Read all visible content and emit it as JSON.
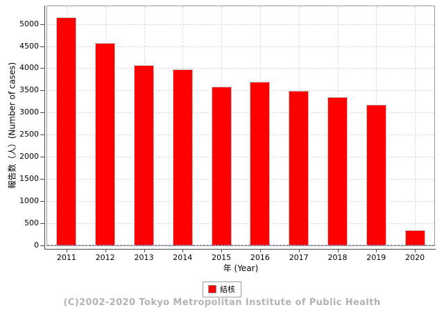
{
  "chart_data": {
    "type": "bar",
    "title": "",
    "categories": [
      "2011",
      "2012",
      "2013",
      "2014",
      "2015",
      "2016",
      "2017",
      "2018",
      "2019",
      "2020"
    ],
    "series": [
      {
        "name": "結核",
        "color": "#ff0000",
        "values": [
          5130,
          4550,
          4050,
          3960,
          3565,
          3680,
          3470,
          3330,
          3155,
          335
        ]
      }
    ],
    "xlabel": "年 (Year)",
    "ylabel": "報告数（人）(Number of cases)",
    "ylim": [
      0,
      5400
    ],
    "yticks": [
      0,
      500,
      1000,
      1500,
      2000,
      2500,
      3000,
      3500,
      4000,
      4500,
      5000
    ],
    "grid": "dashed horizontal and vertical",
    "legend_position": "bottom-center",
    "zero_marker_color": "#8c8cc8"
  },
  "legend": {
    "items": [
      {
        "label": "結核",
        "color": "#ff0000"
      }
    ]
  },
  "footer": {
    "copyright": "(C)2002-2020 Tokyo Metropolitan Institute of Public Health"
  },
  "colors": {
    "bar_fill": "#ff0000",
    "bar_outline": "#c2c2c2",
    "gridline": "#d9d9d9",
    "plot_border": "#9a9a9a",
    "axis_line": "#4a4a4a",
    "zero_marker": "#8c8cc8",
    "footer_text": "#b3b3b3",
    "tick_text": "#000000"
  }
}
